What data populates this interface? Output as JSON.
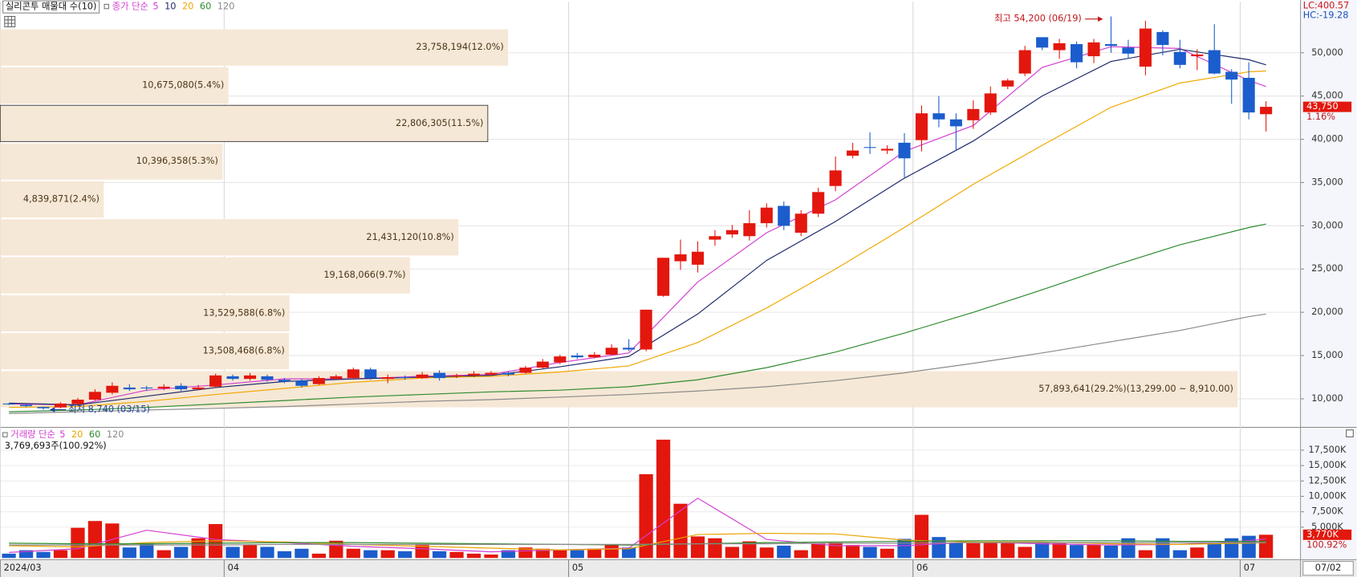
{
  "chart_data": [
    {
      "type": "candlestick",
      "categories": [
        null,
        null,
        null,
        null,
        null,
        null,
        null,
        null,
        null,
        null,
        null,
        null,
        null,
        null,
        null,
        null,
        null,
        null,
        null,
        null,
        null,
        null,
        null,
        null,
        null,
        null,
        null,
        null,
        null,
        null,
        null,
        null,
        null,
        null,
        null,
        null,
        null,
        null,
        null,
        null,
        null,
        null,
        null,
        null,
        null,
        null,
        null,
        null,
        null,
        null,
        null,
        null,
        null,
        null,
        null,
        null,
        null,
        null,
        null,
        null,
        null,
        null,
        null,
        null,
        null,
        null,
        null,
        null,
        null,
        null,
        null,
        null,
        null,
        null
      ],
      "open": [
        9450,
        9300,
        9050,
        9000,
        9400,
        9900,
        10700,
        11300,
        11300,
        11200,
        11500,
        11100,
        11400,
        12600,
        12300,
        12600,
        12200,
        12100,
        11700,
        12300,
        12400,
        13400,
        12300,
        12500,
        12400,
        13000,
        12600,
        12700,
        12800,
        13000,
        13000,
        13600,
        14200,
        15000,
        14800,
        15100,
        15900,
        15700,
        21900,
        25900,
        25500,
        28400,
        29000,
        28800,
        30300,
        32300,
        29200,
        31400,
        34600,
        38100,
        39100,
        38700,
        39600,
        39900,
        43000,
        42300,
        42200,
        43100,
        46100,
        47600,
        51800,
        50300,
        51000,
        49600,
        51000,
        50600,
        48400,
        52400,
        50100,
        49600,
        50300,
        47800,
        47100,
        42900
      ],
      "high": [
        9500,
        9350,
        9100,
        9600,
        10100,
        11100,
        11900,
        11700,
        11500,
        11700,
        11800,
        11600,
        12900,
        12800,
        13000,
        12800,
        12400,
        12300,
        12600,
        12800,
        13600,
        13600,
        12800,
        12700,
        13100,
        13300,
        12900,
        13200,
        13200,
        13200,
        13800,
        14600,
        15100,
        15300,
        15400,
        16300,
        16900,
        20300,
        26300,
        28400,
        28200,
        29500,
        30100,
        31800,
        32600,
        32800,
        31800,
        34400,
        38000,
        39600,
        40800,
        39300,
        40700,
        43900,
        45000,
        43000,
        44500,
        46100,
        47000,
        50800,
        51800,
        51600,
        51300,
        51600,
        54200,
        51500,
        53700,
        52600,
        51500,
        50400,
        53300,
        48100,
        48900,
        44400
      ],
      "low": [
        9300,
        9050,
        8740,
        8900,
        9300,
        9800,
        10500,
        10900,
        10900,
        11000,
        10900,
        11000,
        11300,
        12100,
        12100,
        12000,
        11800,
        11300,
        11600,
        12200,
        12300,
        12200,
        11800,
        12200,
        12300,
        12100,
        12400,
        12500,
        12700,
        12600,
        12900,
        13500,
        14000,
        14600,
        14700,
        15000,
        15500,
        15500,
        21800,
        24900,
        24600,
        27700,
        28600,
        28300,
        29800,
        29500,
        28800,
        31000,
        34000,
        37800,
        38300,
        38300,
        35600,
        38600,
        41400,
        38700,
        41200,
        42800,
        45800,
        47300,
        50300,
        49300,
        48200,
        48800,
        50000,
        49300,
        47400,
        49700,
        48200,
        48000,
        47500,
        44100,
        42300,
        40900
      ],
      "close": [
        9350,
        9150,
        8900,
        9450,
        9900,
        10800,
        11500,
        11100,
        11200,
        11400,
        11100,
        11300,
        12700,
        12300,
        12700,
        12200,
        12000,
        11500,
        12400,
        12600,
        13400,
        12400,
        12500,
        12400,
        12800,
        12400,
        12700,
        12900,
        13000,
        12800,
        13600,
        14300,
        14900,
        14800,
        15100,
        15900,
        15700,
        20300,
        26300,
        26700,
        27000,
        28800,
        29500,
        30300,
        32100,
        30000,
        31400,
        33900,
        36400,
        38700,
        39000,
        38900,
        37800,
        43000,
        42300,
        41500,
        43500,
        45300,
        46800,
        50300,
        50600,
        51100,
        48900,
        51200,
        50800,
        49900,
        52800,
        50900,
        48600,
        49800,
        47600,
        46900,
        43100,
        43750
      ],
      "up_color": "#e3170d",
      "down_color": "#1b5dcc",
      "xlim": [
        -0.5,
        75
      ],
      "ylim": [
        6900,
        55900
      ],
      "yticks": [
        {
          "value": 10000,
          "label": "10,000"
        },
        {
          "value": 15000,
          "label": "15,000"
        },
        {
          "value": 20000,
          "label": "20,000"
        },
        {
          "value": 25000,
          "label": "25,000"
        },
        {
          "value": 30000,
          "label": "30,000"
        },
        {
          "value": 35000,
          "label": "35,000"
        },
        {
          "value": 40000,
          "label": "40,000"
        },
        {
          "value": 45000,
          "label": "45,000"
        },
        {
          "value": 50000,
          "label": "50,000"
        }
      ],
      "xticks": [
        {
          "value": 0,
          "label": "2024/03"
        },
        {
          "value": 13,
          "label": "04"
        },
        {
          "value": 33,
          "label": "05"
        },
        {
          "value": 53,
          "label": "06"
        },
        {
          "value": 72,
          "label": "07"
        }
      ],
      "current_date": "07/02",
      "grid": true,
      "legend_label": "종가 단순",
      "series": [
        {
          "name": "5",
          "color": "#d23fd0",
          "x": [
            0,
            4,
            8,
            12,
            16,
            20,
            24,
            28,
            32,
            36,
            40,
            44,
            48,
            52,
            56,
            60,
            64,
            68,
            72,
            73
          ],
          "values": [
            9400,
            9300,
            11000,
            11600,
            12300,
            12300,
            12600,
            12800,
            14200,
            15300,
            23500,
            29200,
            33000,
            38600,
            41600,
            48300,
            50700,
            50500,
            46800,
            46100
          ]
        },
        {
          "name": "10",
          "color": "#1f2a6b",
          "x": [
            0,
            4,
            8,
            12,
            16,
            20,
            24,
            28,
            32,
            36,
            40,
            44,
            48,
            52,
            56,
            60,
            64,
            68,
            72,
            73
          ],
          "values": [
            9500,
            9300,
            10300,
            11300,
            12000,
            12300,
            12500,
            12700,
            13700,
            14900,
            19800,
            26000,
            30500,
            35500,
            39800,
            45000,
            49000,
            50400,
            49200,
            48600
          ]
        },
        {
          "name": "20",
          "color": "#f0a800",
          "x": [
            0,
            4,
            8,
            12,
            16,
            20,
            24,
            28,
            32,
            36,
            40,
            44,
            48,
            52,
            56,
            60,
            64,
            68,
            72,
            73
          ],
          "values": [
            9000,
            9100,
            9700,
            10500,
            11200,
            11900,
            12400,
            12600,
            13100,
            13800,
            16500,
            20500,
            25000,
            29800,
            34800,
            39300,
            43700,
            46500,
            47800,
            47900
          ]
        },
        {
          "name": "60",
          "color": "#2e8b2e",
          "x": [
            0,
            4,
            8,
            12,
            16,
            20,
            24,
            28,
            32,
            36,
            40,
            44,
            48,
            52,
            56,
            60,
            64,
            68,
            72,
            73
          ],
          "values": [
            8500,
            8700,
            9000,
            9400,
            9800,
            10200,
            10500,
            10800,
            11000,
            11400,
            12200,
            13600,
            15400,
            17600,
            20000,
            22600,
            25300,
            27800,
            29800,
            30200
          ]
        },
        {
          "name": "120",
          "color": "#8a8a8a",
          "x": [
            0,
            4,
            8,
            12,
            16,
            20,
            24,
            28,
            32,
            36,
            40,
            44,
            48,
            52,
            56,
            60,
            64,
            68,
            72,
            73
          ],
          "values": [
            8300,
            8500,
            8700,
            8900,
            9100,
            9400,
            9700,
            9900,
            10200,
            10500,
            10900,
            11400,
            12100,
            13000,
            14100,
            15300,
            16600,
            17900,
            19500,
            19800
          ]
        }
      ],
      "profile": {
        "title": "실리콘투 매물대 수(10)",
        "color": "#f6e8d6",
        "label_color": "#4a3418",
        "highlight": 7,
        "xlim": [
          0,
          60830000
        ],
        "bins": [
          8910,
          13299,
          17688,
          22077,
          26466,
          30855,
          35244,
          39633,
          44022,
          48411,
          52800
        ],
        "values": [
          57893641,
          13508468,
          13529588,
          19168066,
          21431120,
          4839871,
          10396358,
          22806305,
          10675080,
          23758194
        ],
        "value_labels": [
          "57,893,641(29.2%)(13,299.00 ~ 8,910.00)",
          "13,508,468(6.8%)",
          "13,529,588(6.8%)",
          "19,168,066(9.7%)",
          "21,431,120(10.8%)",
          "4,839,871(2.4%)",
          "10,396,358(5.3%)",
          "22,806,305(11.5%)",
          "10,675,080(5.4%)",
          "23,758,194(12.0%)"
        ]
      },
      "annotations": [
        {
          "label": "최고 54,200 (06/19)",
          "value": 54200,
          "index": 64,
          "color": "#c0161a"
        },
        {
          "label": "최저 8,740 (03/15)",
          "value": 8740,
          "index": 2,
          "color": "#1f3f9f"
        }
      ],
      "lc": "LC:400.57",
      "hc": "HC:-19.28",
      "last": {
        "value": 43750,
        "label": "43,750",
        "change": "1.16%"
      }
    },
    {
      "type": "bar",
      "title": "3,769,693주(100.92%)",
      "values": [
        700,
        1260,
        980,
        1260,
        4900,
        6000,
        5600,
        1700,
        2400,
        1260,
        1800,
        3200,
        5500,
        1800,
        2100,
        1800,
        1100,
        1500,
        700,
        2800,
        1500,
        1260,
        1260,
        1100,
        2100,
        1100,
        980,
        700,
        560,
        1260,
        1700,
        1500,
        1260,
        1260,
        1500,
        2100,
        1700,
        13600,
        19200,
        8800,
        3500,
        3200,
        1800,
        2700,
        1700,
        2000,
        1260,
        2400,
        2500,
        2100,
        1800,
        1500,
        3100,
        7000,
        3400,
        2500,
        2400,
        2500,
        2400,
        1800,
        2500,
        2400,
        2100,
        2100,
        2000,
        3200,
        1260,
        3200,
        1260,
        1700,
        2400,
        3200,
        3600,
        3770
      ],
      "xlim": [
        -0.5,
        75
      ],
      "ylim": [
        0,
        20780
      ],
      "yticks": [
        {
          "value": 5000,
          "label": "5,000K"
        },
        {
          "value": 7500,
          "label": "7,500K"
        },
        {
          "value": 10000,
          "label": "10,000K"
        },
        {
          "value": 12500,
          "label": "12,500K"
        },
        {
          "value": 15000,
          "label": "15,000K"
        },
        {
          "value": 17500,
          "label": "17,500K"
        }
      ],
      "legend_label": "거래량 단순",
      "series": [
        {
          "name": "5",
          "color": "#d23fd0",
          "x": [
            0,
            4,
            8,
            12,
            16,
            20,
            24,
            28,
            32,
            36,
            40,
            44,
            48,
            52,
            56,
            60,
            64,
            68,
            72,
            73
          ],
          "values": [
            900,
            1500,
            4500,
            3000,
            2500,
            1900,
            1500,
            1000,
            1300,
            1600,
            9700,
            3000,
            2000,
            2000,
            2600,
            2300,
            2100,
            2200,
            2800,
            3100
          ]
        },
        {
          "name": "20",
          "color": "#e8a400",
          "x": [
            0,
            4,
            8,
            12,
            16,
            20,
            24,
            28,
            32,
            36,
            40,
            44,
            48,
            52,
            56,
            60,
            64,
            68,
            72,
            73
          ],
          "values": [
            2000,
            1800,
            2500,
            2800,
            2600,
            2200,
            1900,
            1600,
            1300,
            1500,
            3800,
            4000,
            3900,
            2900,
            2600,
            2600,
            2300,
            2200,
            2400,
            2500
          ]
        },
        {
          "name": "60",
          "color": "#2e8b2e",
          "x": [
            0,
            4,
            8,
            12,
            16,
            20,
            24,
            28,
            32,
            36,
            40,
            44,
            48,
            52,
            56,
            60,
            64,
            68,
            72,
            73
          ],
          "values": [
            2400,
            2300,
            2300,
            2400,
            2500,
            2500,
            2400,
            2300,
            2200,
            2100,
            2300,
            2500,
            2600,
            2700,
            2800,
            2800,
            2800,
            2700,
            2700,
            2700
          ]
        },
        {
          "name": "120",
          "color": "#8a8a8a",
          "x": [
            0,
            4,
            8,
            12,
            16,
            20,
            24,
            28,
            32,
            36,
            40,
            44,
            48,
            52,
            56,
            60,
            64,
            68,
            72,
            73
          ],
          "values": [
            2100,
            2100,
            2100,
            2100,
            2200,
            2200,
            2200,
            2200,
            2200,
            2200,
            2300,
            2300,
            2400,
            2400,
            2500,
            2500,
            2500,
            2500,
            2500,
            2500
          ]
        }
      ],
      "last": {
        "value": 3770,
        "label": "3,770K",
        "change": "100.92%"
      }
    }
  ]
}
